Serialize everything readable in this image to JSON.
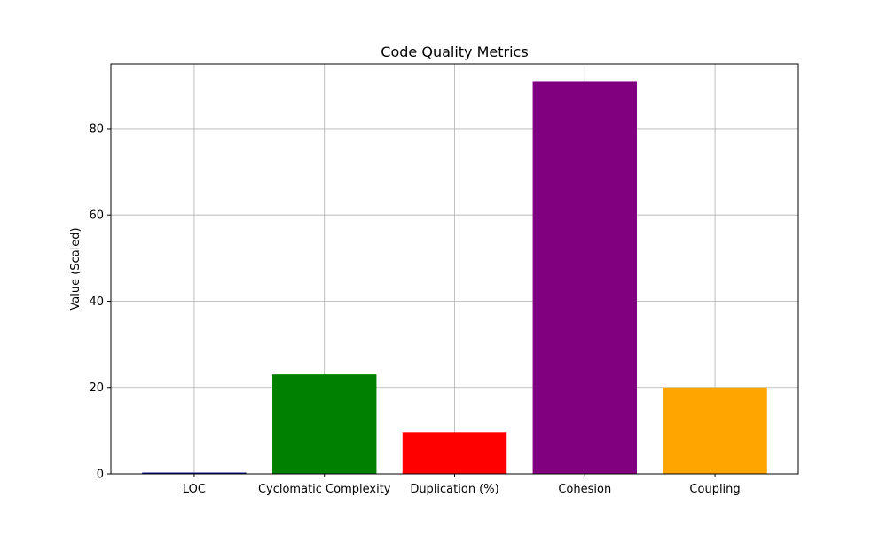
{
  "chart_data": {
    "type": "bar",
    "title": "Code Quality Metrics",
    "xlabel": "",
    "ylabel": "Value (Scaled)",
    "categories": [
      "LOC",
      "Cyclomatic Complexity",
      "Duplication (%)",
      "Cohesion",
      "Coupling"
    ],
    "values": [
      0.3,
      23,
      9.6,
      91,
      20
    ],
    "colors": [
      "#00008b",
      "#008000",
      "#ff0000",
      "#800080",
      "#ffa500"
    ],
    "ylim": [
      0,
      95
    ],
    "yticks": [
      0,
      20,
      40,
      60,
      80
    ],
    "grid": true,
    "legend": "none"
  }
}
